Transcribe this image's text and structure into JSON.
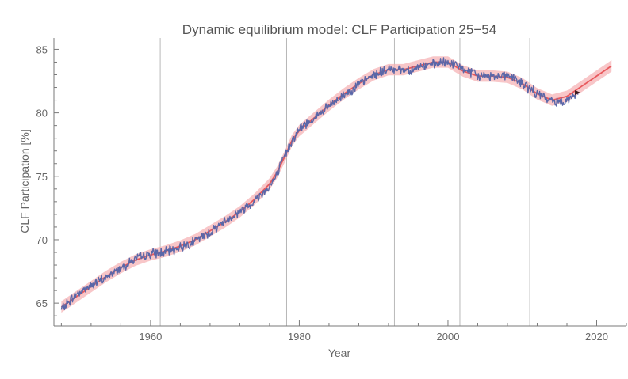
{
  "chart_data": {
    "type": "line",
    "title": "Dynamic equilibrium model: CLF Participation 25−54",
    "xlabel": "Year",
    "ylabel": "CLF Participation [%]",
    "xlim": [
      1947.0,
      2024.0
    ],
    "ylim": [
      63.2,
      85.9
    ],
    "xticks": [
      1960,
      1980,
      2000,
      2020
    ],
    "yticks": [
      65,
      70,
      75,
      80,
      85
    ],
    "grid": false,
    "legend": "none",
    "vertical_lines": [
      1961.3,
      1978.3,
      1992.8,
      2001.6,
      2011.0
    ],
    "colors": {
      "data": "#5a67a8",
      "model": "#e8595d",
      "band": "#f6b3b6",
      "reference_lines": "#b8b8b8"
    },
    "series": [
      {
        "role": "data",
        "x": [
          1948.0,
          1950.0,
          1952.0,
          1954.0,
          1956.0,
          1958.0,
          1960.0,
          1962.0,
          1964.0,
          1966.0,
          1968.0,
          1970.0,
          1972.0,
          1974.0,
          1976.0,
          1977.0,
          1978.0,
          1979.0,
          1980.0,
          1982.0,
          1984.0,
          1986.0,
          1988.0,
          1990.0,
          1992.0,
          1993.0,
          1994.0,
          1995.0,
          1996.0,
          1998.0,
          2000.0,
          2002.0,
          2004.0,
          2006.0,
          2008.0,
          2010.0,
          2012.0,
          2014.0,
          2015.0,
          2016.0,
          2017.5
        ],
        "y": [
          64.5,
          65.7,
          66.4,
          67.0,
          67.8,
          68.5,
          68.9,
          69.0,
          69.4,
          69.9,
          70.6,
          71.5,
          72.2,
          73.1,
          74.2,
          75.1,
          76.6,
          77.8,
          78.7,
          79.6,
          80.5,
          81.4,
          82.2,
          83.0,
          83.4,
          83.5,
          83.4,
          83.4,
          83.6,
          83.8,
          84.0,
          83.5,
          82.9,
          82.9,
          83.0,
          82.3,
          81.5,
          80.9,
          80.9,
          81.0,
          81.6
        ]
      },
      {
        "role": "model",
        "x": [
          1948.0,
          1950.0,
          1952.0,
          1954.0,
          1956.0,
          1958.0,
          1960.0,
          1962.0,
          1964.0,
          1966.0,
          1968.0,
          1970.0,
          1972.0,
          1974.0,
          1976.0,
          1977.0,
          1978.0,
          1979.0,
          1980.0,
          1982.0,
          1984.0,
          1986.0,
          1988.0,
          1990.0,
          1992.0,
          1994.0,
          1996.0,
          1998.0,
          2000.0,
          2002.0,
          2004.0,
          2006.0,
          2008.0,
          2010.0,
          2012.0,
          2014.0,
          2016.0,
          2018.0,
          2020.0,
          2022.0
        ],
        "y": [
          64.7,
          65.5,
          66.3,
          67.1,
          67.8,
          68.4,
          68.8,
          69.1,
          69.5,
          70.0,
          70.7,
          71.4,
          72.2,
          73.2,
          74.4,
          75.3,
          76.5,
          77.8,
          78.6,
          79.6,
          80.6,
          81.5,
          82.3,
          83.0,
          83.4,
          83.4,
          83.7,
          84.0,
          84.0,
          83.3,
          82.9,
          82.9,
          82.8,
          82.3,
          81.5,
          81.0,
          81.3,
          82.1,
          82.9,
          83.7
        ]
      }
    ],
    "band_halfwidth": 0.45
  }
}
